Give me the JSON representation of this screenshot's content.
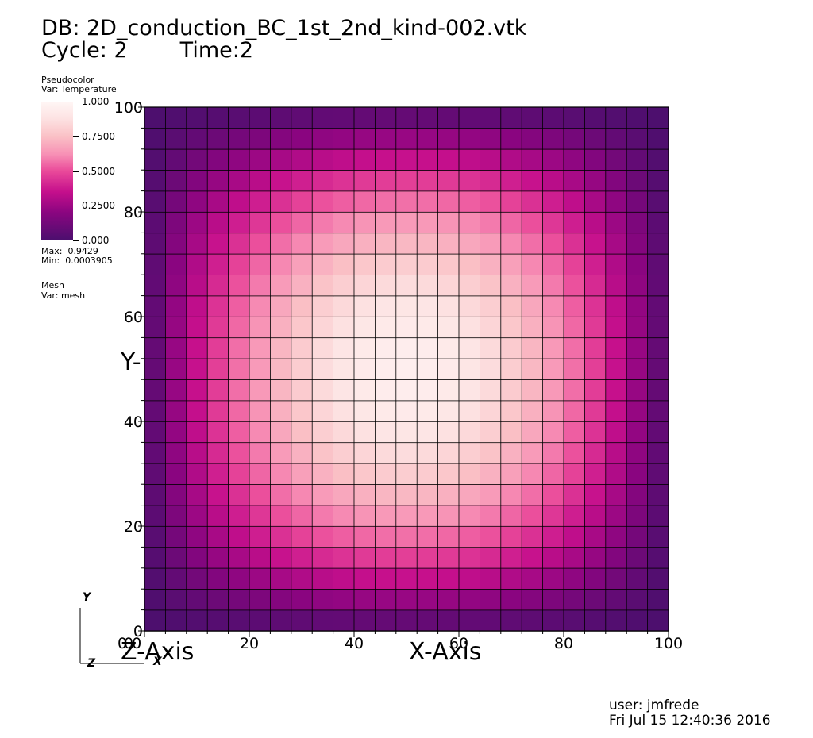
{
  "header": {
    "db_line": "DB: 2D_conduction_BC_1st_2nd_kind-002.vtk",
    "cycle_label": "Cycle: 2",
    "time_label": "Time:2"
  },
  "legend": {
    "plot_type": "Pseudocolor",
    "variable": "Var: Temperature",
    "ticks": [
      "1.000",
      "0.7500",
      "0.5000",
      "0.2500",
      "0.000"
    ],
    "max_text": "Max:  0.9429",
    "min_text": "Min:  0.0003905",
    "mesh_label": "Mesh",
    "mesh_var": "Var: mesh"
  },
  "axes": {
    "x_title": "X-Axis",
    "y_title": "Y-",
    "z_title": "Z-Axis",
    "x_ticks": [
      "0",
      "20",
      "40",
      "60",
      "80",
      "100"
    ],
    "y_ticks": [
      "0",
      "20",
      "40",
      "60",
      "80",
      "100"
    ],
    "x_overlap_label": "0.0"
  },
  "triad": {
    "y_label": "Y",
    "z_label": "Z",
    "x_label": "X"
  },
  "footer": {
    "user": "user: jmfrede",
    "timestamp": "Fri Jul 15 12:40:36 2016"
  },
  "chart_data": {
    "type": "heatmap",
    "xlim": [
      0,
      100
    ],
    "ylim": [
      0,
      100
    ],
    "grid_cells": [
      25,
      25
    ],
    "variable": "Temperature",
    "min": 0.0003905,
    "max": 0.9429,
    "peak_location": [
      50,
      50
    ],
    "colorscale": [
      "#4b0f6e",
      "#8a0580",
      "#c50f8c",
      "#ea4a9a",
      "#f790b5",
      "#fac1c6",
      "#fde3e3",
      "#fff6f5"
    ],
    "grid": true
  }
}
